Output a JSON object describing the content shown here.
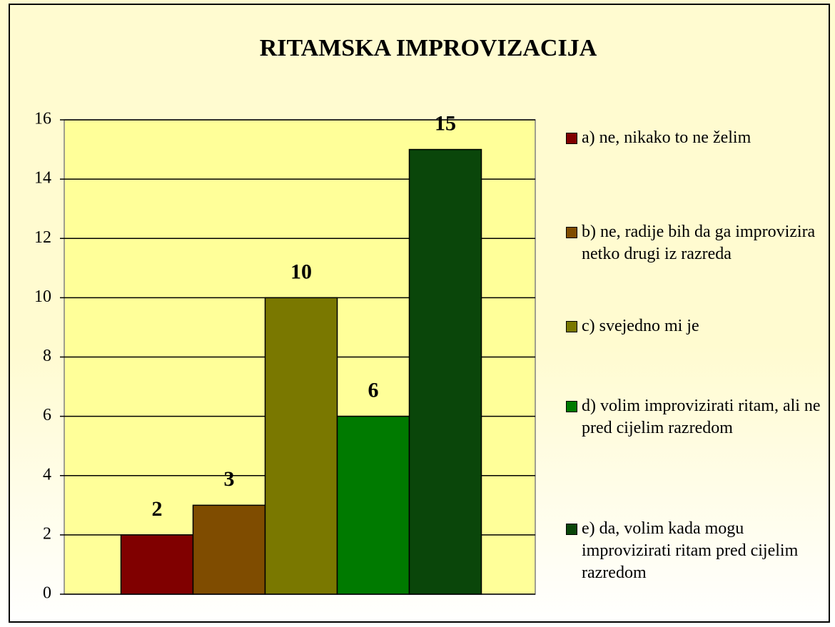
{
  "chart_data": {
    "type": "bar",
    "title": "RITAMSKA IMPROVIZACIJA",
    "categories": [
      null
    ],
    "series": [
      {
        "name": "a) ne, nikako to ne želim",
        "color": "#800000",
        "values": [
          2
        ]
      },
      {
        "name": "b) ne, radije bih da ga improvizira netko drugi iz razreda",
        "color": "#7f4c00",
        "values": [
          3
        ]
      },
      {
        "name": "c) svejedno mi je",
        "color": "#7a7800",
        "values": [
          10
        ]
      },
      {
        "name": "d) volim improvizirati ritam, ali ne pred cijelim razredom",
        "color": "#007a00",
        "values": [
          6
        ]
      },
      {
        "name": "e) da, volim kada mogu improvizirati ritam pred cijelim razredom",
        "color": "#0a460a",
        "values": [
          15
        ]
      }
    ],
    "ylim": [
      0,
      16
    ],
    "yticks": [
      0,
      2,
      4,
      6,
      8,
      10,
      12,
      14,
      16
    ],
    "grid": true,
    "legend": "right"
  }
}
